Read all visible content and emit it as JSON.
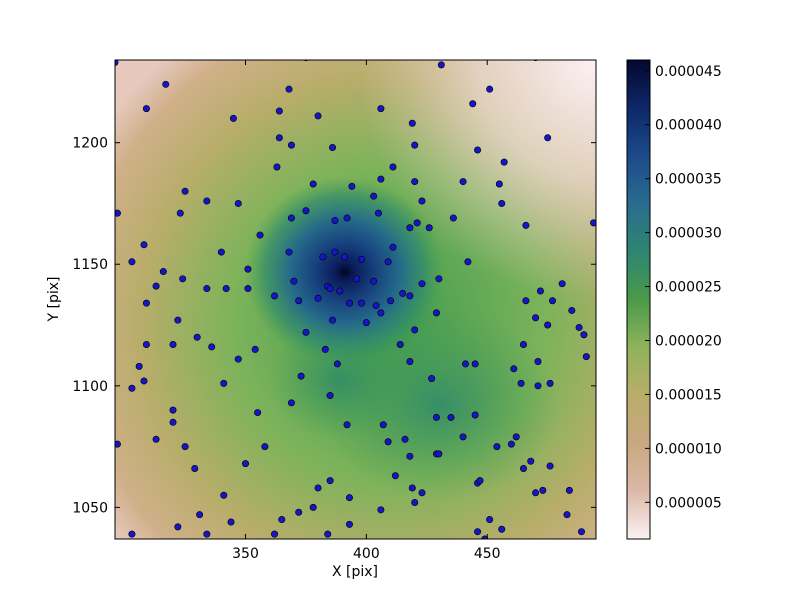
{
  "chart_data": {
    "type": "heatmap",
    "xlabel": "X [pix]",
    "ylabel": "Y [pix]",
    "xlim": [
      296,
      495
    ],
    "ylim": [
      1037,
      1234
    ],
    "x_ticks": [
      350,
      400,
      450
    ],
    "x_tick_labels": [
      "350",
      "400",
      "450"
    ],
    "y_ticks": [
      1050,
      1100,
      1150,
      1200
    ],
    "y_tick_labels": [
      "1050",
      "1100",
      "1150",
      "1200"
    ],
    "grid": false,
    "colorbar": {
      "range": [
        1.6e-06,
        4.6e-05
      ],
      "ticks": [
        5e-06,
        1e-05,
        1.5e-05,
        2e-05,
        2.5e-05,
        3e-05,
        3.5e-05,
        4e-05,
        4.5e-05
      ],
      "tick_labels": [
        "0.000005",
        "0.000010",
        "0.000015",
        "0.000020",
        "0.000025",
        "0.000030",
        "0.000035",
        "0.000040",
        "0.000045"
      ],
      "colormap": [
        "#fbf2f4",
        "#dcb8a8",
        "#c8a880",
        "#b9ad6a",
        "#8fb35a",
        "#4a9a4a",
        "#2e8572",
        "#2a6c8e",
        "#1c4a8a",
        "#0d2868",
        "#04082e"
      ]
    },
    "points_color": "#1616c8",
    "points": [
      [
        296,
        1233
      ],
      [
        317,
        1224
      ],
      [
        309,
        1214
      ],
      [
        345,
        1210
      ],
      [
        368,
        1222
      ],
      [
        375,
        1235
      ],
      [
        380,
        1211
      ],
      [
        406,
        1214
      ],
      [
        431,
        1232
      ],
      [
        444,
        1216
      ],
      [
        451,
        1222
      ],
      [
        470,
        1235
      ],
      [
        364,
        1213
      ],
      [
        364,
        1202
      ],
      [
        369,
        1199
      ],
      [
        386,
        1198
      ],
      [
        419,
        1208
      ],
      [
        420,
        1199
      ],
      [
        446,
        1197
      ],
      [
        457,
        1192
      ],
      [
        475,
        1202
      ],
      [
        363,
        1190
      ],
      [
        378,
        1183
      ],
      [
        394,
        1182
      ],
      [
        406,
        1185
      ],
      [
        411,
        1190
      ],
      [
        420,
        1184
      ],
      [
        440,
        1184
      ],
      [
        455,
        1183
      ],
      [
        325,
        1180
      ],
      [
        334,
        1176
      ],
      [
        347,
        1175
      ],
      [
        356,
        1162
      ],
      [
        323,
        1171
      ],
      [
        375,
        1172
      ],
      [
        403,
        1178
      ],
      [
        423,
        1176
      ],
      [
        436,
        1169
      ],
      [
        456,
        1175
      ],
      [
        466,
        1166
      ],
      [
        405,
        1171
      ],
      [
        369,
        1169
      ],
      [
        387,
        1168
      ],
      [
        392,
        1169
      ],
      [
        421,
        1167
      ],
      [
        426,
        1165
      ],
      [
        418,
        1165
      ],
      [
        297,
        1171
      ],
      [
        494,
        1167
      ],
      [
        308,
        1158
      ],
      [
        303,
        1151
      ],
      [
        316,
        1147
      ],
      [
        340,
        1155
      ],
      [
        351,
        1148
      ],
      [
        368,
        1155
      ],
      [
        382,
        1153
      ],
      [
        387,
        1155
      ],
      [
        391,
        1153
      ],
      [
        398,
        1152
      ],
      [
        411,
        1157
      ],
      [
        442,
        1151
      ],
      [
        370,
        1143
      ],
      [
        384,
        1141
      ],
      [
        396,
        1144
      ],
      [
        403,
        1143
      ],
      [
        409,
        1151
      ],
      [
        423,
        1142
      ],
      [
        430,
        1144
      ],
      [
        324,
        1144
      ],
      [
        313,
        1141
      ],
      [
        334,
        1140
      ],
      [
        342,
        1140
      ],
      [
        351,
        1140
      ],
      [
        362,
        1137
      ],
      [
        372,
        1135
      ],
      [
        380,
        1136
      ],
      [
        385,
        1140
      ],
      [
        389,
        1139
      ],
      [
        393,
        1134
      ],
      [
        398,
        1134
      ],
      [
        404,
        1133
      ],
      [
        410,
        1135
      ],
      [
        415,
        1138
      ],
      [
        418,
        1137
      ],
      [
        472,
        1139
      ],
      [
        481,
        1142
      ],
      [
        309,
        1134
      ],
      [
        322,
        1127
      ],
      [
        320,
        1117
      ],
      [
        330,
        1120
      ],
      [
        336,
        1116
      ],
      [
        354,
        1115
      ],
      [
        375,
        1122
      ],
      [
        386,
        1127
      ],
      [
        400,
        1126
      ],
      [
        406,
        1130
      ],
      [
        420,
        1123
      ],
      [
        429,
        1130
      ],
      [
        466,
        1135
      ],
      [
        470,
        1128
      ],
      [
        477,
        1135
      ],
      [
        475,
        1125
      ],
      [
        485,
        1131
      ],
      [
        488,
        1124
      ],
      [
        490,
        1121
      ],
      [
        309,
        1117
      ],
      [
        306,
        1108
      ],
      [
        308,
        1102
      ],
      [
        303,
        1099
      ],
      [
        341,
        1101
      ],
      [
        347,
        1111
      ],
      [
        373,
        1104
      ],
      [
        383,
        1115
      ],
      [
        388,
        1109
      ],
      [
        414,
        1117
      ],
      [
        418,
        1110
      ],
      [
        427,
        1103
      ],
      [
        441,
        1109
      ],
      [
        445,
        1109
      ],
      [
        465,
        1117
      ],
      [
        471,
        1110
      ],
      [
        461,
        1107
      ],
      [
        464,
        1101
      ],
      [
        471,
        1100
      ],
      [
        476,
        1101
      ],
      [
        491,
        1112
      ],
      [
        355,
        1089
      ],
      [
        369,
        1093
      ],
      [
        385,
        1096
      ],
      [
        392,
        1084
      ],
      [
        407,
        1084
      ],
      [
        409,
        1077
      ],
      [
        416,
        1078
      ],
      [
        418,
        1071
      ],
      [
        429,
        1087
      ],
      [
        435,
        1087
      ],
      [
        429,
        1072
      ],
      [
        440,
        1079
      ],
      [
        445,
        1088
      ],
      [
        454,
        1075
      ],
      [
        462,
        1079
      ],
      [
        460,
        1076
      ],
      [
        465,
        1066
      ],
      [
        468,
        1069
      ],
      [
        476,
        1067
      ],
      [
        320,
        1090
      ],
      [
        320,
        1085
      ],
      [
        313,
        1078
      ],
      [
        325,
        1075
      ],
      [
        350,
        1068
      ],
      [
        358,
        1075
      ],
      [
        385,
        1061
      ],
      [
        412,
        1063
      ],
      [
        419,
        1058
      ],
      [
        423,
        1056
      ],
      [
        430,
        1072
      ],
      [
        446,
        1060
      ],
      [
        470,
        1056
      ],
      [
        473,
        1057
      ],
      [
        484,
        1057
      ],
      [
        329,
        1066
      ],
      [
        341,
        1055
      ],
      [
        380,
        1058
      ],
      [
        393,
        1054
      ],
      [
        406,
        1049
      ],
      [
        420,
        1052
      ],
      [
        447,
        1061
      ],
      [
        372,
        1048
      ],
      [
        378,
        1050
      ],
      [
        331,
        1047
      ],
      [
        344,
        1044
      ],
      [
        365,
        1045
      ],
      [
        384,
        1039
      ],
      [
        393,
        1043
      ],
      [
        322,
        1042
      ],
      [
        334,
        1039
      ],
      [
        303,
        1039
      ],
      [
        362,
        1039
      ],
      [
        446,
        1040
      ],
      [
        451,
        1045
      ],
      [
        449,
        1037
      ],
      [
        456,
        1041
      ],
      [
        483,
        1047
      ],
      [
        489,
        1040
      ],
      [
        297,
        1076
      ]
    ]
  }
}
